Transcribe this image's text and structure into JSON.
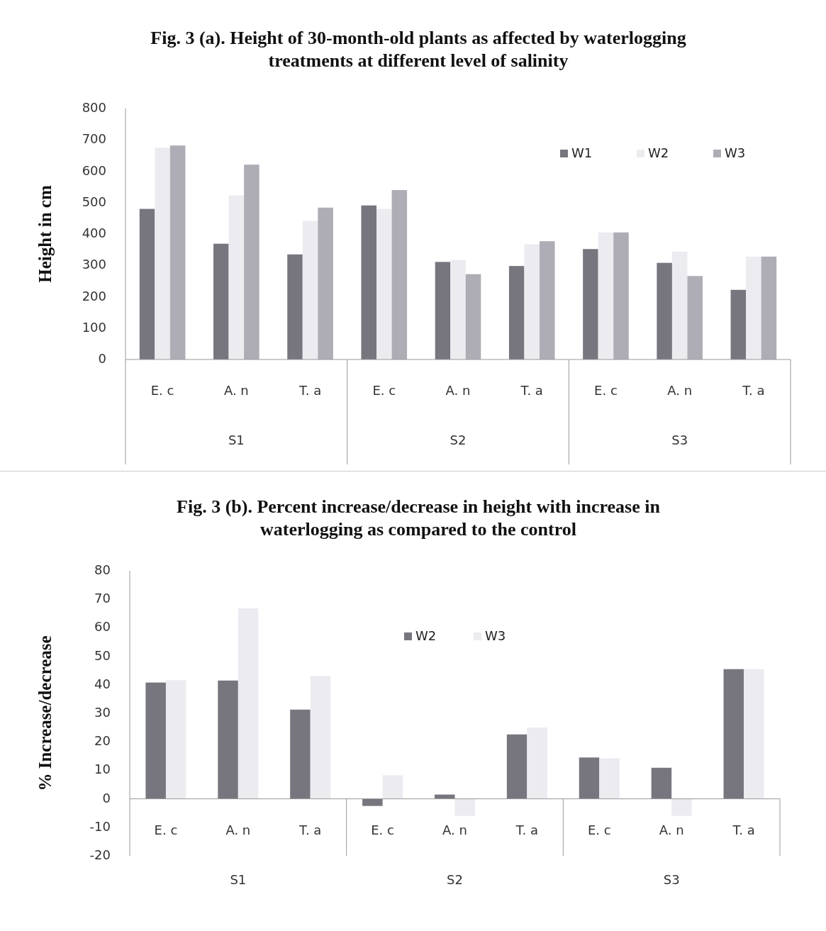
{
  "chart_data": [
    {
      "type": "bar",
      "title": "Fig. 3 (a). Height of 30-month-old plants as affected by waterlogging treatments at different level of salinity",
      "ylabel": "Height in cm",
      "categories": [
        "E. c",
        "A. n",
        "T. a",
        "E. c",
        "A. n",
        "T. a",
        "E. c",
        "A. n",
        "T. a"
      ],
      "annotations": [
        "S1",
        "S2",
        "S3"
      ],
      "series": [
        {
          "name": "W1",
          "color": "#77767f",
          "values": [
            480,
            369,
            335,
            491,
            311,
            298,
            352,
            308,
            222
          ]
        },
        {
          "name": "W2",
          "color": "#ecebf0",
          "values": [
            675,
            523,
            442,
            480,
            317,
            367,
            405,
            344,
            328
          ]
        },
        {
          "name": "W3",
          "color": "#aeadb5",
          "values": [
            682,
            621,
            484,
            540,
            272,
            377,
            405,
            266,
            328
          ]
        }
      ],
      "ylim": [
        0,
        800
      ],
      "yticks": [
        0,
        100,
        200,
        300,
        400,
        500,
        600,
        700,
        800
      ],
      "legend": "top right",
      "grid": false
    },
    {
      "type": "bar",
      "title": "Fig. 3 (b). Percent increase/decrease in height with increase in waterlogging as compared to the control",
      "ylabel": "% Increase/decrease",
      "categories": [
        "E. c",
        "A. n",
        "T. a",
        "E. c",
        "A. n",
        "T. a",
        "E. c",
        "A. n",
        "T. a"
      ],
      "annotations": [
        "S1",
        "S2",
        "S3"
      ],
      "series": [
        {
          "name": "W2",
          "color": "#77767f",
          "values": [
            40.8,
            41.5,
            31.3,
            -2.5,
            1.5,
            22.6,
            14.5,
            10.9,
            45.5
          ]
        },
        {
          "name": "W3",
          "color": "#ecebf0",
          "values": [
            41.6,
            66.8,
            43.1,
            8.3,
            -6,
            25,
            14.2,
            -6,
            45.5
          ]
        }
      ],
      "ylim": [
        -20,
        80
      ],
      "yticks": [
        -20,
        -10,
        0,
        10,
        20,
        30,
        40,
        50,
        60,
        70,
        80
      ],
      "legend": "top",
      "grid": false
    }
  ]
}
